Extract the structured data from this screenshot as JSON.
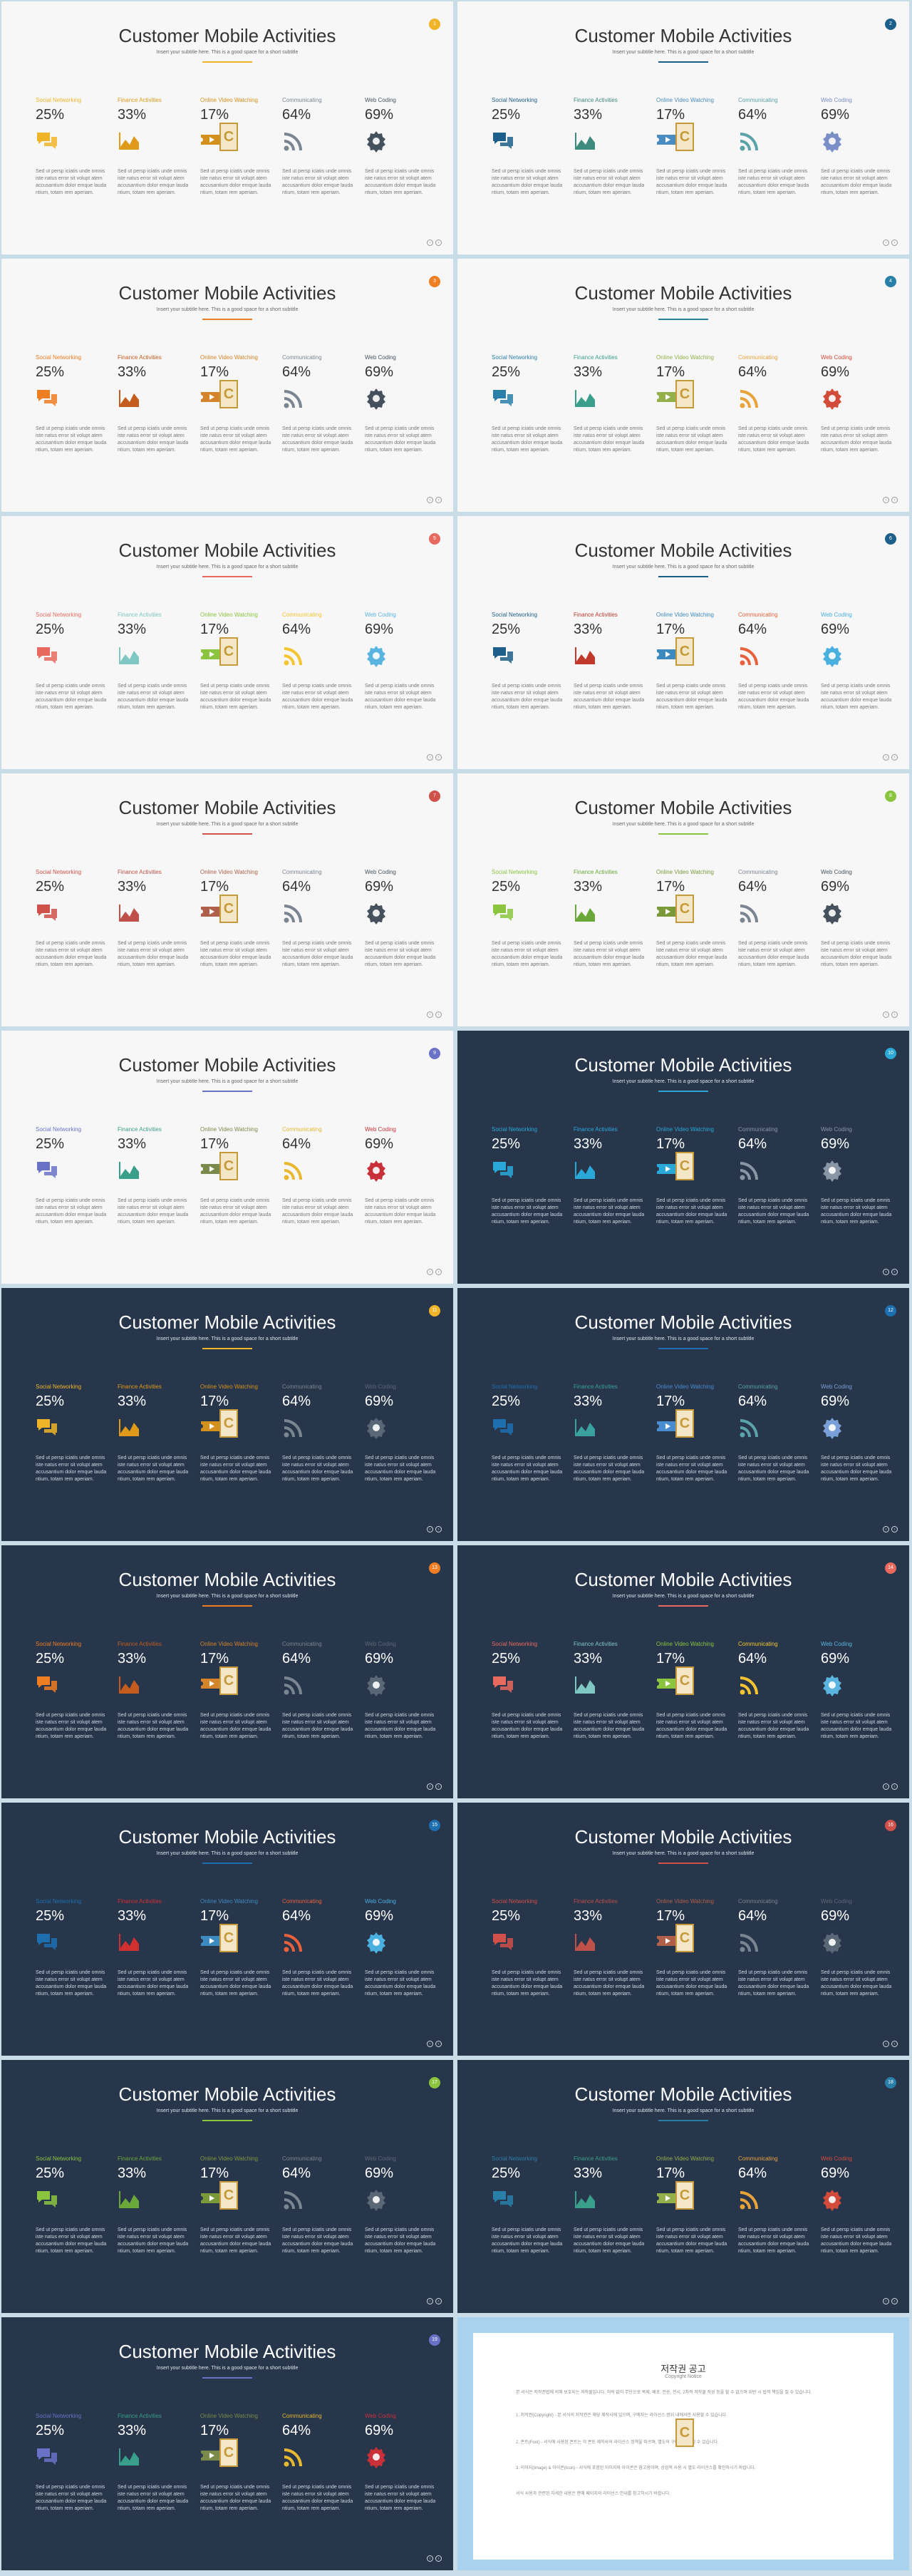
{
  "slide_template": {
    "title": "Customer Mobile Activities",
    "subtitle": "Insert your subtitle here. This is a good space for a short subtitle",
    "nav_prev": "‹",
    "nav_next": "›",
    "logo_letter": "C",
    "columns": [
      {
        "label": "Social Networking",
        "value": "25%",
        "icon": "chat-icon",
        "text": "Sed ut persp iciatis unde omnis iste natus error sit volupt atem accusantium dolor emque lauda ntium, totam rem aperiam."
      },
      {
        "label": "Finance Activities",
        "value": "33%",
        "icon": "area-chart-icon",
        "text": "Sed ut persp iciatis unde omnis iste natus error sit volupt atem accusantium dolor emque lauda ntium, totam rem aperiam."
      },
      {
        "label": "Online Video Watching",
        "value": "17%",
        "icon": "video-ticket-icon",
        "text": "Sed ut persp iciatis unde omnis iste natus error sit volupt atem accusantium dolor emque lauda ntium, totam rem aperiam."
      },
      {
        "label": "Communicating",
        "value": "64%",
        "icon": "rss-icon",
        "text": "Sed ut persp iciatis unde omnis iste natus error sit volupt atem accusantium dolor emque lauda ntium, totam rem aperiam."
      },
      {
        "label": "Web Coding",
        "value": "69%",
        "icon": "gear-icon",
        "text": "Sed ut persp iciatis unde omnis iste natus error sit volupt atem accusantium dolor emque lauda ntium, totam rem aperiam."
      }
    ]
  },
  "slides": [
    {
      "theme": "light",
      "page": "1",
      "colors": [
        "#f0b429",
        "#e09a1a",
        "#d4901c",
        "#7a8591",
        "#45525e"
      ],
      "accent": "#f0b429"
    },
    {
      "theme": "light",
      "page": "2",
      "colors": [
        "#1d5f8a",
        "#3d8a7e",
        "#4a8cc0",
        "#5aa3a8",
        "#7a8fc8"
      ],
      "accent": "#1d5f8a"
    },
    {
      "theme": "light",
      "page": "3",
      "colors": [
        "#ef7d22",
        "#c45c1d",
        "#d4842a",
        "#7a8591",
        "#45525e"
      ],
      "accent": "#ef7d22"
    },
    {
      "theme": "light",
      "page": "4",
      "colors": [
        "#2a7fa8",
        "#3a9f8a",
        "#94b04a",
        "#e8a33b",
        "#d24a3a"
      ],
      "accent": "#2a7fa8"
    },
    {
      "theme": "light",
      "page": "5",
      "colors": [
        "#e86a5e",
        "#7fc7c2",
        "#8bc53f",
        "#f4c530",
        "#5ab4e0"
      ],
      "accent": "#e86a5e"
    },
    {
      "theme": "light",
      "page": "6",
      "colors": [
        "#1d5f8a",
        "#c0392b",
        "#3d8ac0",
        "#e8613c",
        "#4ab0e0"
      ],
      "accent": "#1d5f8a"
    },
    {
      "theme": "light",
      "page": "7",
      "colors": [
        "#d0504a",
        "#c0504a",
        "#b0604a",
        "#7a8591",
        "#45525e"
      ],
      "accent": "#d0504a"
    },
    {
      "theme": "light",
      "page": "8",
      "colors": [
        "#8bc53f",
        "#6aa83a",
        "#7a9a3a",
        "#7a8591",
        "#45525e"
      ],
      "accent": "#8bc53f"
    },
    {
      "theme": "light",
      "page": "9",
      "colors": [
        "#6a72c8",
        "#3a9f8a",
        "#7a8a4a",
        "#e8b830",
        "#c8303a"
      ],
      "accent": "#6a72c8"
    },
    {
      "theme": "dark",
      "page": "10",
      "colors": [
        "#2aa8d8",
        "#2aa8d8",
        "#2aa8d8",
        "#8a96a6",
        "#8a96a6"
      ],
      "accent": "#2aa8d8"
    },
    {
      "theme": "dark",
      "page": "11",
      "colors": [
        "#f0b429",
        "#e09a1a",
        "#d4901c",
        "#7a8591",
        "#5a6776"
      ],
      "accent": "#f0b429"
    },
    {
      "theme": "dark",
      "page": "12",
      "colors": [
        "#1d6fb0",
        "#3aa0a0",
        "#4a8cd0",
        "#5aa3a8",
        "#7a9fd8"
      ],
      "accent": "#1d6fb0"
    },
    {
      "theme": "dark",
      "page": "13",
      "colors": [
        "#ef7d22",
        "#c45c1d",
        "#d4842a",
        "#7a8591",
        "#5a6776"
      ],
      "accent": "#ef7d22"
    },
    {
      "theme": "dark",
      "page": "14",
      "colors": [
        "#e86a5e",
        "#7fc7c2",
        "#8bc53f",
        "#f4c530",
        "#5ab4e0"
      ],
      "accent": "#e86a5e"
    },
    {
      "theme": "dark",
      "page": "15",
      "colors": [
        "#1d6fb0",
        "#d03030",
        "#3d8ac0",
        "#e8613c",
        "#4ab0e0"
      ],
      "accent": "#1d6fb0"
    },
    {
      "theme": "dark",
      "page": "16",
      "colors": [
        "#d0504a",
        "#c0504a",
        "#b0604a",
        "#7a8591",
        "#5a6776"
      ],
      "accent": "#d0504a"
    },
    {
      "theme": "dark",
      "page": "17",
      "colors": [
        "#8bc53f",
        "#6aa83a",
        "#7a9a3a",
        "#7a8591",
        "#5a6776"
      ],
      "accent": "#8bc53f"
    },
    {
      "theme": "dark",
      "page": "18",
      "colors": [
        "#2a7fa8",
        "#3a9f8a",
        "#94b04a",
        "#e8a33b",
        "#d24a3a"
      ],
      "accent": "#2a7fa8"
    },
    {
      "theme": "dark",
      "page": "19",
      "colors": [
        "#6a72c8",
        "#3a9f8a",
        "#7a8a4a",
        "#e8b830",
        "#c8303a"
      ],
      "accent": "#6a72c8"
    }
  ],
  "copyright": {
    "title": "저작권 공고",
    "subtitle": "Copyright Notice",
    "paragraphs": [
      "본 서식은 저작권법에 의해 보호되는 저작물입니다. 허락 없이 무단으로 복제, 배포, 전송, 전시, 2차적 저작물 작성 등을 할 수 없으며 위반 시 법적 책임을 질 수 있습니다.",
      "1. 저작권(Copyright) - 본 서식의 저작권은 해당 제작사에 있으며, 구매자는 라이선스 범위 내에서만 사용할 수 있습니다.",
      "2. 폰트(Font) - 서식에 사용된 폰트는 각 폰트 제작사의 라이선스 정책을 따르며, 별도의 구매가 필요할 수 있습니다.",
      "3. 이미지(Image) & 아이콘(Icon) - 서식에 포함된 이미지와 아이콘은 참고용이며, 상업적 사용 시 별도 라이선스를 확인하시기 바랍니다.",
      "서식 사용과 관련된 자세한 내용은 판매 페이지의 라이선스 안내를 참고하시기 바랍니다."
    ]
  }
}
